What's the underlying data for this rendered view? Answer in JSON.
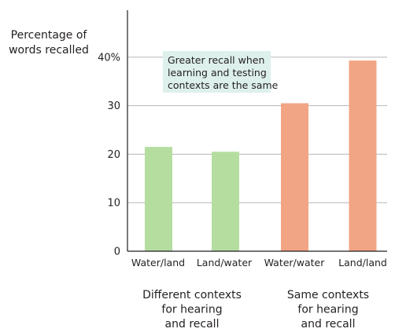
{
  "chart_data": {
    "type": "bar",
    "ylabel_lines": [
      "Percentage of",
      "words recalled"
    ],
    "ylim": [
      0,
      45
    ],
    "yticks": [
      {
        "value": 0,
        "label": "0"
      },
      {
        "value": 10,
        "label": "10"
      },
      {
        "value": 20,
        "label": "20"
      },
      {
        "value": 30,
        "label": "30"
      },
      {
        "value": 40,
        "label": "40%"
      }
    ],
    "categories": [
      "Water/land",
      "Land/water",
      "Water/water",
      "Land/land"
    ],
    "values": [
      21.5,
      20.5,
      30.5,
      39.3
    ],
    "groups": [
      {
        "lines": [
          "Different contexts",
          "for hearing",
          "and recall"
        ],
        "color": "#b5dda0",
        "indices": [
          0,
          1
        ]
      },
      {
        "lines": [
          "Same contexts",
          "for hearing",
          "and recall"
        ],
        "color": "#f2a585",
        "indices": [
          2,
          3
        ]
      }
    ],
    "annotation_lines": [
      "Greater recall when",
      "learning and testing",
      "contexts are the same"
    ],
    "annotation_bg": "#ddf0ec",
    "grid_color": "#bcbec0",
    "axis_color": "#231f20",
    "grid": true
  }
}
